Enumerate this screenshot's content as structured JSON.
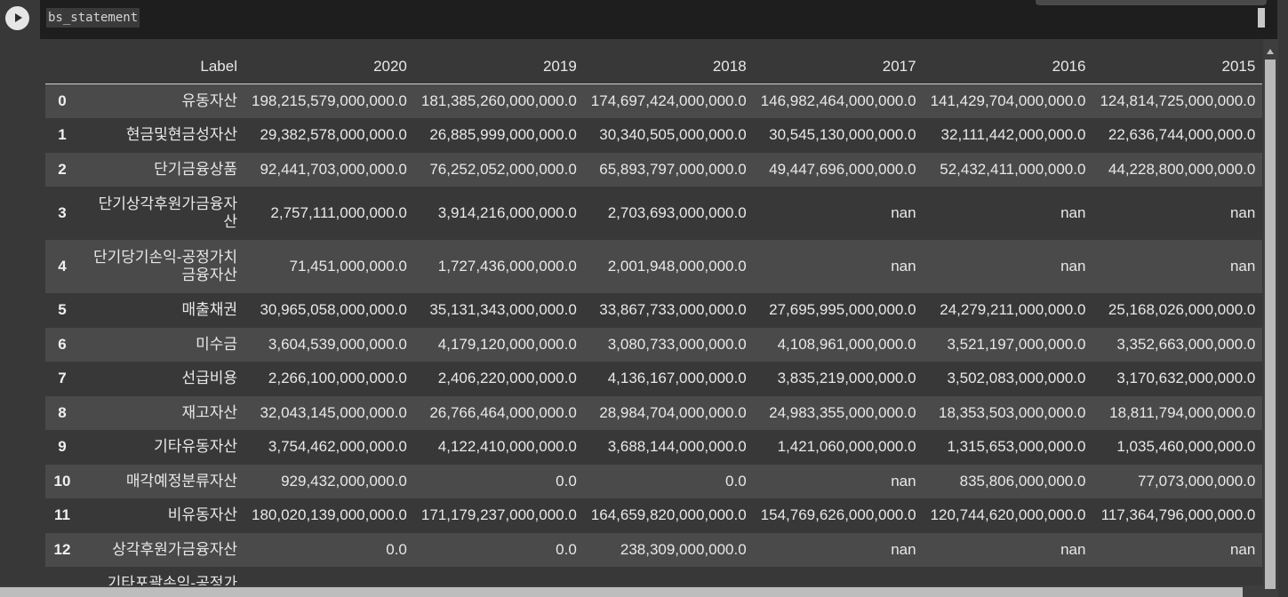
{
  "cell": {
    "code": "bs_statement"
  },
  "icons": {
    "run": "play-icon"
  },
  "table": {
    "columns": [
      "",
      "Label",
      "2020",
      "2019",
      "2018",
      "2017",
      "2016",
      "2015"
    ],
    "rows": [
      {
        "idx": "0",
        "label": "유동자산",
        "values": [
          "198,215,579,000,000.0",
          "181,385,260,000,000.0",
          "174,697,424,000,000.0",
          "146,982,464,000,000.0",
          "141,429,704,000,000.0",
          "124,814,725,000,000.0"
        ]
      },
      {
        "idx": "1",
        "label": "현금및현금성자산",
        "values": [
          "29,382,578,000,000.0",
          "26,885,999,000,000.0",
          "30,340,505,000,000.0",
          "30,545,130,000,000.0",
          "32,111,442,000,000.0",
          "22,636,744,000,000.0"
        ]
      },
      {
        "idx": "2",
        "label": "단기금융상품",
        "values": [
          "92,441,703,000,000.0",
          "76,252,052,000,000.0",
          "65,893,797,000,000.0",
          "49,447,696,000,000.0",
          "52,432,411,000,000.0",
          "44,228,800,000,000.0"
        ]
      },
      {
        "idx": "3",
        "label": "단기상각후원가금융자산",
        "values": [
          "2,757,111,000,000.0",
          "3,914,216,000,000.0",
          "2,703,693,000,000.0",
          "nan",
          "nan",
          "nan"
        ]
      },
      {
        "idx": "4",
        "label": "단기당기손익-공정가치금융자산",
        "values": [
          "71,451,000,000.0",
          "1,727,436,000,000.0",
          "2,001,948,000,000.0",
          "nan",
          "nan",
          "nan"
        ]
      },
      {
        "idx": "5",
        "label": "매출채권",
        "values": [
          "30,965,058,000,000.0",
          "35,131,343,000,000.0",
          "33,867,733,000,000.0",
          "27,695,995,000,000.0",
          "24,279,211,000,000.0",
          "25,168,026,000,000.0"
        ]
      },
      {
        "idx": "6",
        "label": "미수금",
        "values": [
          "3,604,539,000,000.0",
          "4,179,120,000,000.0",
          "3,080,733,000,000.0",
          "4,108,961,000,000.0",
          "3,521,197,000,000.0",
          "3,352,663,000,000.0"
        ]
      },
      {
        "idx": "7",
        "label": "선급비용",
        "values": [
          "2,266,100,000,000.0",
          "2,406,220,000,000.0",
          "4,136,167,000,000.0",
          "3,835,219,000,000.0",
          "3,502,083,000,000.0",
          "3,170,632,000,000.0"
        ]
      },
      {
        "idx": "8",
        "label": "재고자산",
        "values": [
          "32,043,145,000,000.0",
          "26,766,464,000,000.0",
          "28,984,704,000,000.0",
          "24,983,355,000,000.0",
          "18,353,503,000,000.0",
          "18,811,794,000,000.0"
        ]
      },
      {
        "idx": "9",
        "label": "기타유동자산",
        "values": [
          "3,754,462,000,000.0",
          "4,122,410,000,000.0",
          "3,688,144,000,000.0",
          "1,421,060,000,000.0",
          "1,315,653,000,000.0",
          "1,035,460,000,000.0"
        ]
      },
      {
        "idx": "10",
        "label": "매각예정분류자산",
        "values": [
          "929,432,000,000.0",
          "0.0",
          "0.0",
          "nan",
          "835,806,000,000.0",
          "77,073,000,000.0"
        ]
      },
      {
        "idx": "11",
        "label": "비유동자산",
        "values": [
          "180,020,139,000,000.0",
          "171,179,237,000,000.0",
          "164,659,820,000,000.0",
          "154,769,626,000,000.0",
          "120,744,620,000,000.0",
          "117,364,796,000,000.0"
        ]
      },
      {
        "idx": "12",
        "label": "상각후원가금융자산",
        "values": [
          "0.0",
          "0.0",
          "238,309,000,000.0",
          "nan",
          "nan",
          "nan"
        ]
      },
      {
        "idx": "",
        "label": "기타포괄손익-공정가",
        "values": [
          "",
          "",
          "",
          "",
          "",
          ""
        ]
      }
    ]
  }
}
